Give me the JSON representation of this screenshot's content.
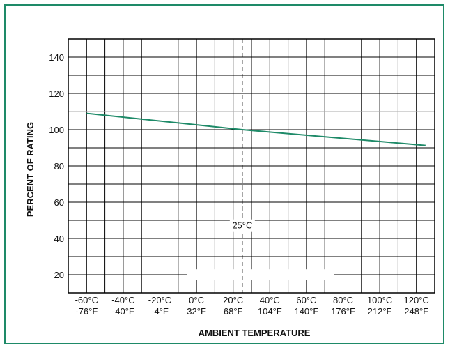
{
  "chart_data": {
    "type": "line",
    "xlabel": "AMBIENT TEMPERATURE",
    "ylabel": "PERCENT OF RATING",
    "xlim": [
      -70,
      130
    ],
    "ylim": [
      10,
      150
    ],
    "y_ticks": [
      "20",
      "40",
      "60",
      "80",
      "100",
      "120",
      "140"
    ],
    "x_ticks": [
      {
        "value": -60,
        "c": "-60°C",
        "f": "-76°F"
      },
      {
        "value": -40,
        "c": "-40°C",
        "f": "-40°F"
      },
      {
        "value": -20,
        "c": "-20°C",
        "f": "-4°F"
      },
      {
        "value": 0,
        "c": "0°C",
        "f": "32°F"
      },
      {
        "value": 20,
        "c": "20°C",
        "f": "68°F"
      },
      {
        "value": 40,
        "c": "40°C",
        "f": "104°F"
      },
      {
        "value": 60,
        "c": "60°C",
        "f": "140°F"
      },
      {
        "value": 80,
        "c": "80°C",
        "f": "176°F"
      },
      {
        "value": 100,
        "c": "100°C",
        "f": "212°F"
      },
      {
        "value": 120,
        "c": "120°C",
        "f": "248°F"
      }
    ],
    "series": [
      {
        "x": [
          -60,
          25,
          125
        ],
        "values": [
          109,
          100,
          91.3
        ]
      }
    ],
    "reference_lines": {
      "x": 25,
      "y": 100
    },
    "annotation": "25°C",
    "grid": true,
    "colors": {
      "line": "#1e8a68",
      "frame": "#1e8a68",
      "grid": "#000000"
    }
  }
}
